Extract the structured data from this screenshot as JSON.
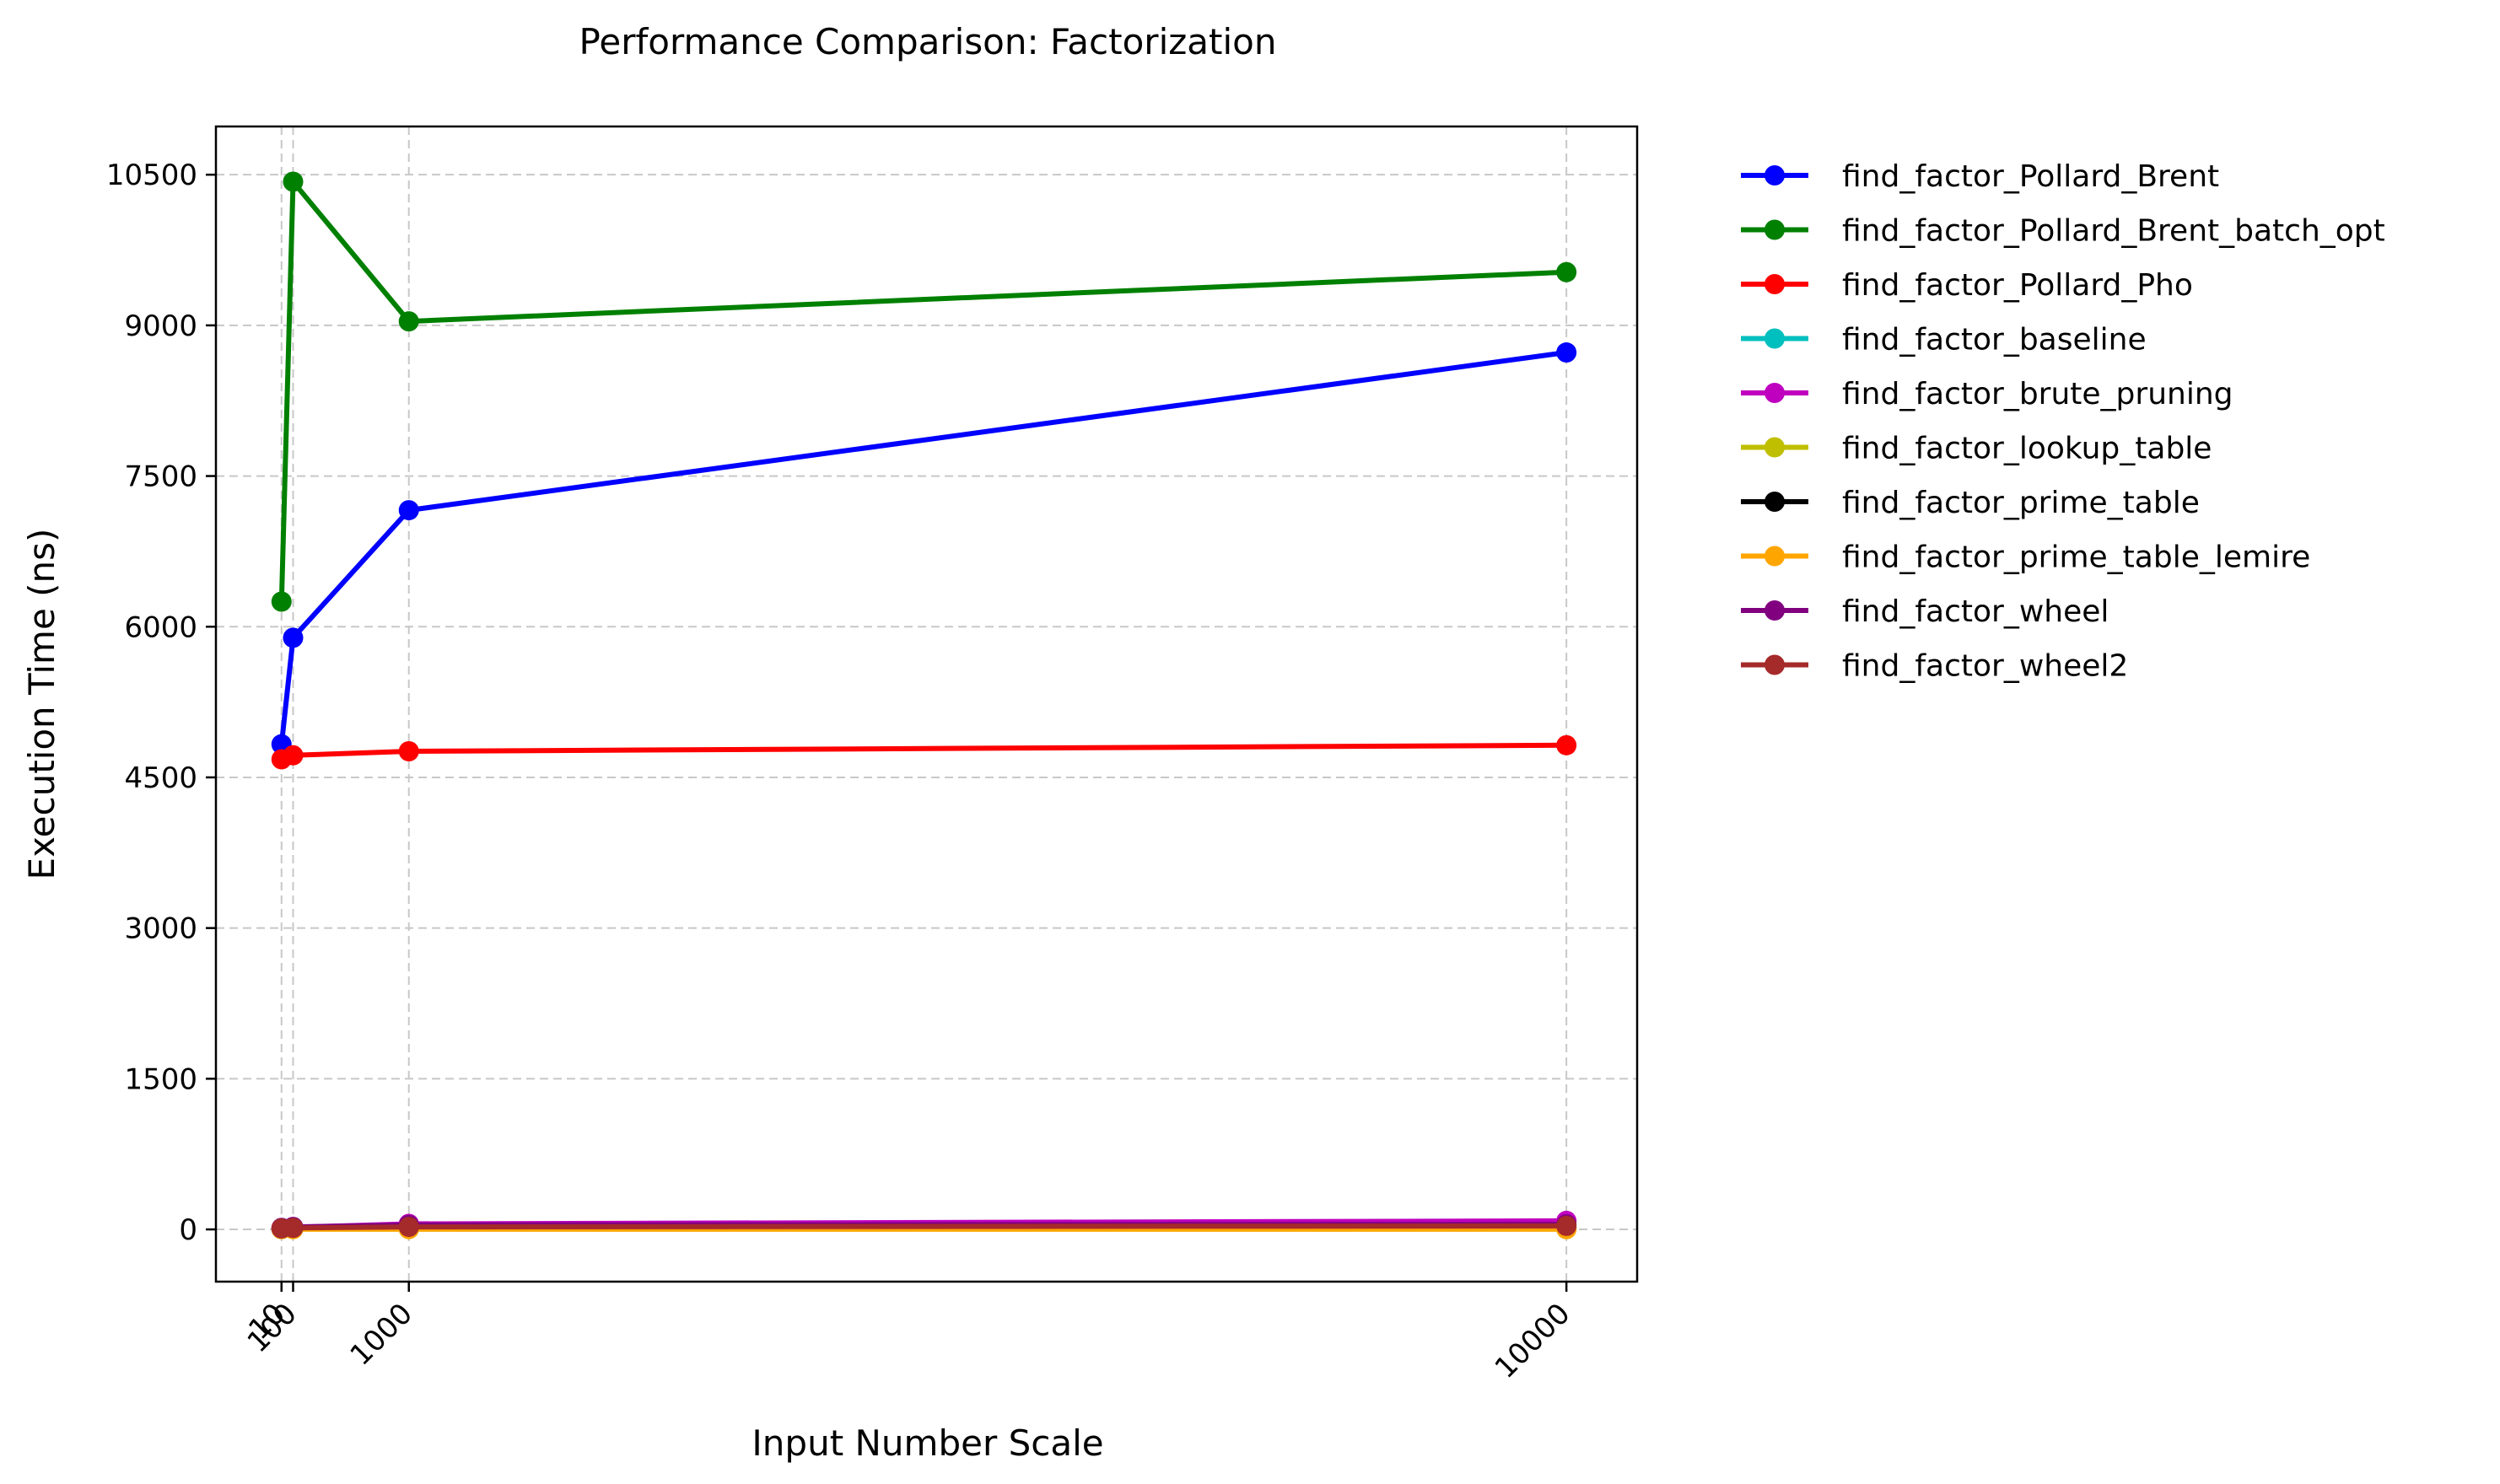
{
  "chart_data": {
    "type": "line",
    "title": "Performance Comparison: Factorization",
    "xlabel": "Input Number Scale",
    "ylabel": "Execution Time (ns)",
    "x": [
      10,
      100,
      1000,
      10000
    ],
    "x_tick_labels": [
      "10",
      "100",
      "1000",
      "10000"
    ],
    "xlim": [
      -500,
      10550
    ],
    "ylim": [
      -520,
      10980
    ],
    "y_ticks": [
      0,
      1500,
      3000,
      4500,
      6000,
      7500,
      9000,
      10500
    ],
    "grid": true,
    "legend_position": "outside-right",
    "series": [
      {
        "name": "find_factor_Pollard_Brent",
        "color": "#0000ff",
        "values": [
          4830,
          5890,
          7160,
          8730
        ]
      },
      {
        "name": "find_factor_Pollard_Brent_batch_opt",
        "color": "#008000",
        "values": [
          6250,
          10430,
          9040,
          9530
        ]
      },
      {
        "name": "find_factor_Pollard_Pho",
        "color": "#ff0000",
        "values": [
          4680,
          4720,
          4760,
          4820
        ]
      },
      {
        "name": "find_factor_baseline",
        "color": "#00bfbf",
        "values": [
          5,
          10,
          20,
          30
        ]
      },
      {
        "name": "find_factor_brute_pruning",
        "color": "#bf00bf",
        "values": [
          10,
          20,
          55,
          85
        ]
      },
      {
        "name": "find_factor_lookup_table",
        "color": "#bfbf00",
        "values": [
          3,
          3,
          3,
          3
        ]
      },
      {
        "name": "find_factor_prime_table",
        "color": "#000000",
        "values": [
          5,
          8,
          10,
          12
        ]
      },
      {
        "name": "find_factor_prime_table_lemire",
        "color": "#ffa500",
        "values": [
          3,
          3,
          3,
          3
        ]
      },
      {
        "name": "find_factor_wheel",
        "color": "#800080",
        "values": [
          15,
          25,
          45,
          50
        ]
      },
      {
        "name": "find_factor_wheel2",
        "color": "#a52a2a",
        "values": [
          10,
          15,
          25,
          35
        ]
      }
    ]
  }
}
